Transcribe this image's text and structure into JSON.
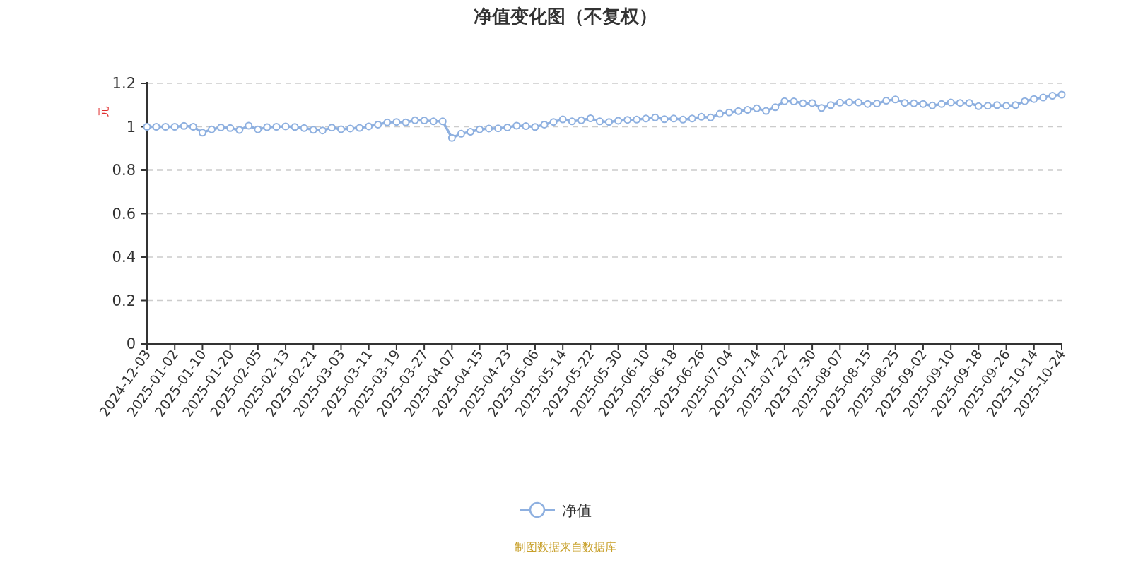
{
  "chart_data": {
    "type": "line",
    "title": "净值变化图（不复权）",
    "ylabel": "元",
    "categories": [
      "2024-12-03",
      null,
      null,
      "2025-01-02",
      null,
      null,
      "2025-01-10",
      null,
      null,
      "2025-01-20",
      null,
      null,
      "2025-02-05",
      null,
      null,
      "2025-02-13",
      null,
      null,
      "2025-02-21",
      null,
      null,
      "2025-03-03",
      null,
      null,
      "2025-03-11",
      null,
      null,
      "2025-03-19",
      null,
      null,
      "2025-03-27",
      null,
      null,
      "2025-04-07",
      null,
      null,
      "2025-04-15",
      null,
      null,
      "2025-04-23",
      null,
      null,
      "2025-05-06",
      null,
      null,
      "2025-05-14",
      null,
      null,
      "2025-05-22",
      null,
      null,
      "2025-05-30",
      null,
      null,
      "2025-06-10",
      null,
      null,
      "2025-06-18",
      null,
      null,
      "2025-06-26",
      null,
      null,
      "2025-07-04",
      null,
      null,
      "2025-07-14",
      null,
      null,
      "2025-07-22",
      null,
      null,
      "2025-07-30",
      null,
      null,
      "2025-08-07",
      null,
      null,
      "2025-08-15",
      null,
      null,
      "2025-08-25",
      null,
      null,
      "2025-09-02",
      null,
      null,
      "2025-09-10",
      null,
      null,
      "2025-09-18",
      null,
      null,
      "2025-09-26",
      null,
      null,
      "2025-10-14",
      null,
      null,
      "2025-10-24"
    ],
    "series": [
      {
        "name": "净值",
        "color": "#8eb0e0",
        "values": [
          1.0,
          1.0,
          1.0,
          1.0,
          1.004,
          1.0,
          0.973,
          0.988,
          0.997,
          0.994,
          0.985,
          1.005,
          0.988,
          0.998,
          1.0,
          1.002,
          0.999,
          0.994,
          0.986,
          0.983,
          0.996,
          0.989,
          0.992,
          0.995,
          1.002,
          1.01,
          1.02,
          1.022,
          1.02,
          1.03,
          1.029,
          1.025,
          1.025,
          0.949,
          0.968,
          0.977,
          0.988,
          0.992,
          0.993,
          0.997,
          1.005,
          1.003,
          0.999,
          1.01,
          1.022,
          1.034,
          1.025,
          1.03,
          1.039,
          1.025,
          1.022,
          1.028,
          1.032,
          1.033,
          1.038,
          1.043,
          1.035,
          1.038,
          1.033,
          1.038,
          1.046,
          1.043,
          1.06,
          1.066,
          1.072,
          1.078,
          1.085,
          1.073,
          1.09,
          1.118,
          1.117,
          1.108,
          1.109,
          1.087,
          1.1,
          1.111,
          1.113,
          1.112,
          1.105,
          1.107,
          1.12,
          1.126,
          1.11,
          1.108,
          1.105,
          1.098,
          1.105,
          1.112,
          1.11,
          1.11,
          1.095,
          1.097,
          1.1,
          1.097,
          1.1,
          1.118,
          1.128,
          1.135,
          1.143,
          1.148
        ]
      }
    ],
    "ylim": [
      0,
      1.2
    ],
    "yticks": [
      0,
      0.2,
      0.4,
      0.6,
      0.8,
      1,
      1.2
    ],
    "grid": "y",
    "legend": "bottom",
    "marker": "circle",
    "annotations": [
      "制图数据来自数据库"
    ]
  }
}
